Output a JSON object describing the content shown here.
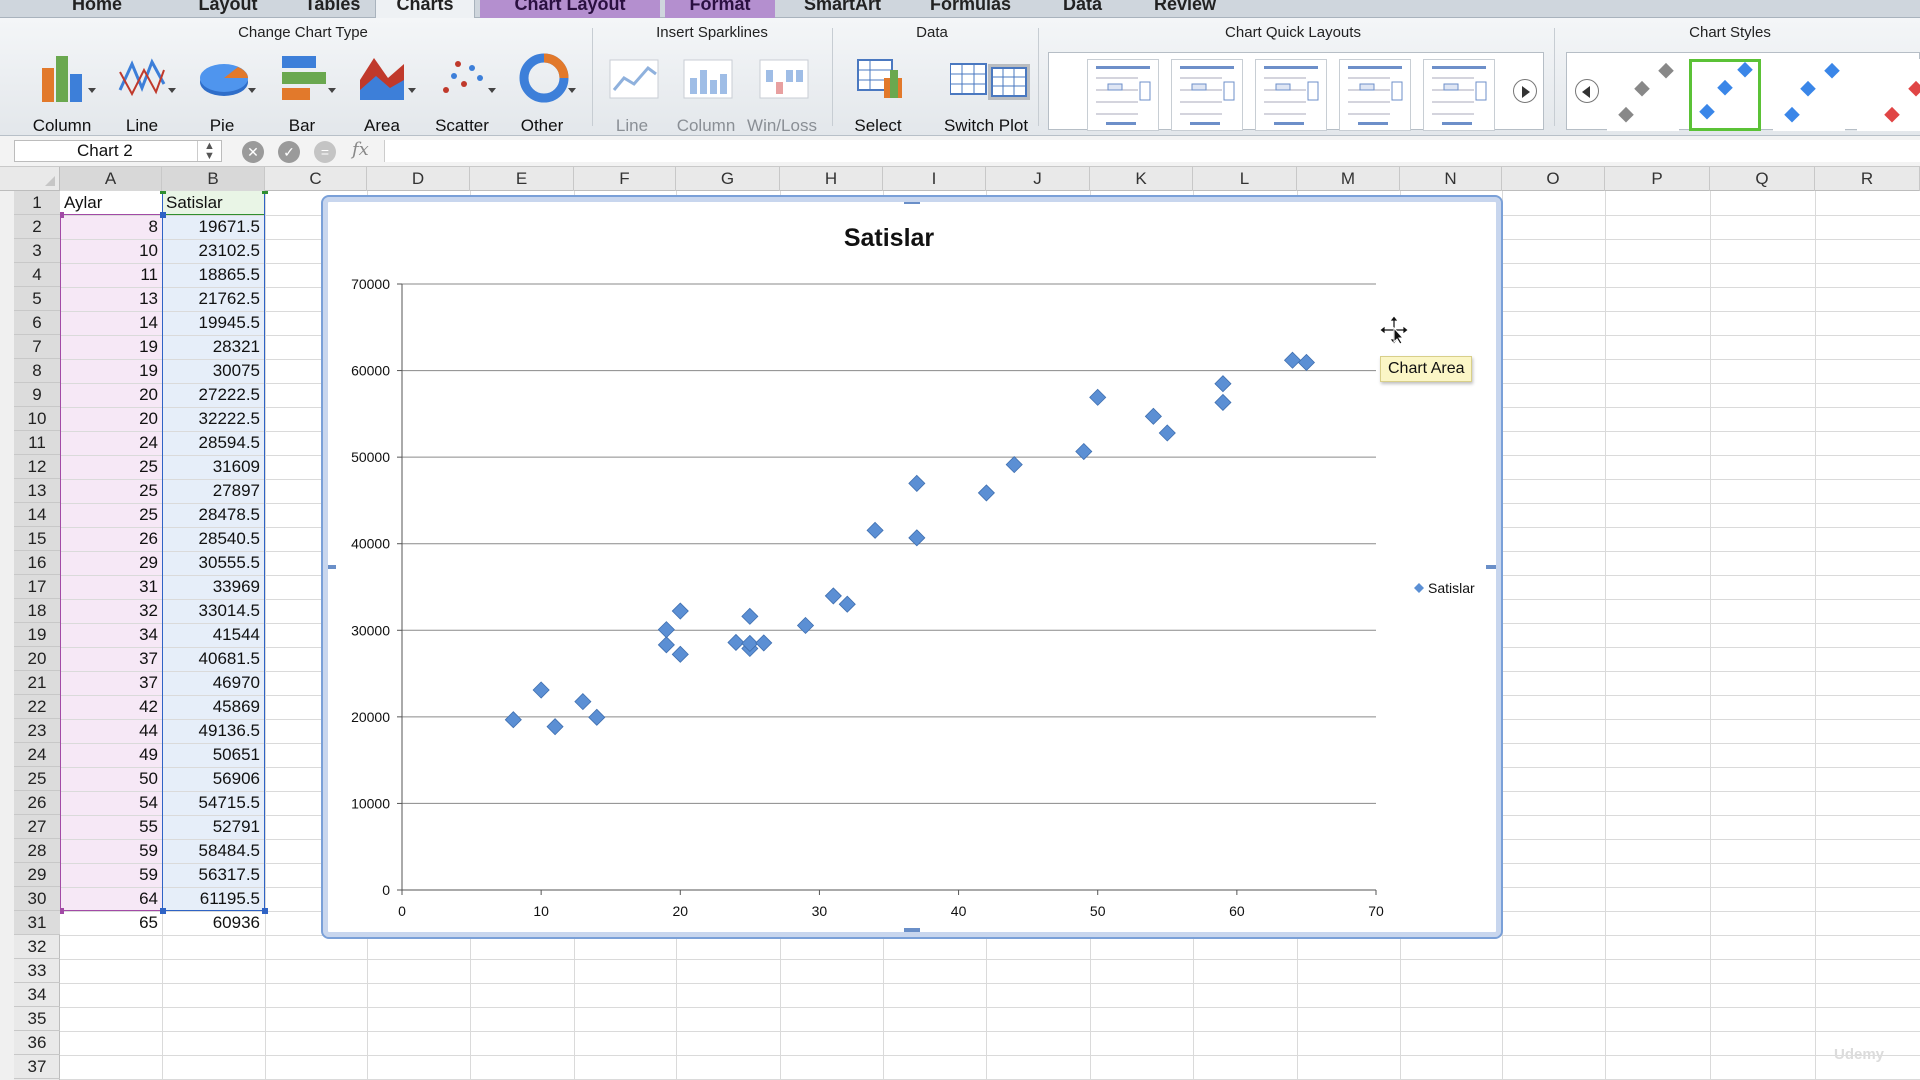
{
  "ribbon_tabs": [
    "Home",
    "Layout",
    "Tables",
    "Charts",
    "Chart Layout",
    "Format",
    "SmartArt",
    "Formulas",
    "Data",
    "Review"
  ],
  "ribbon": {
    "groups": {
      "change_chart_type": "Change Chart Type",
      "insert_sparklines": "Insert Sparklines",
      "data": "Data",
      "chart_quick_layouts": "Chart Quick Layouts",
      "chart_styles": "Chart Styles"
    },
    "chart_type_buttons": [
      "Column",
      "Line",
      "Pie",
      "Bar",
      "Area",
      "Scatter",
      "Other"
    ],
    "sparkline_buttons": [
      "Line",
      "Column",
      "Win/Loss"
    ],
    "data_buttons": [
      "Select",
      "Switch Plot"
    ]
  },
  "formula_bar": {
    "name_box": "Chart 2",
    "fx_label": "fx",
    "value": ""
  },
  "columns": [
    "A",
    "B",
    "C",
    "D",
    "E",
    "F",
    "G",
    "H",
    "I",
    "J",
    "K",
    "L",
    "M",
    "N",
    "O",
    "P",
    "Q",
    "R"
  ],
  "rows": [
    "1",
    "2",
    "3",
    "4",
    "5",
    "6",
    "7",
    "8",
    "9",
    "10",
    "11",
    "12",
    "13",
    "14",
    "15",
    "16",
    "17",
    "18",
    "19",
    "20",
    "21",
    "22",
    "23",
    "24",
    "25",
    "26",
    "27",
    "28",
    "29",
    "30",
    "31",
    "32",
    "33",
    "34",
    "35",
    "36",
    "37"
  ],
  "sheet": {
    "headers": [
      "Aylar",
      "Satislar"
    ],
    "a_values": [
      "8",
      "10",
      "11",
      "13",
      "14",
      "19",
      "19",
      "20",
      "20",
      "24",
      "25",
      "25",
      "25",
      "26",
      "29",
      "31",
      "32",
      "34",
      "37",
      "37",
      "42",
      "44",
      "49",
      "50",
      "54",
      "55",
      "59",
      "59",
      "64",
      "65"
    ],
    "b_values": [
      "19671.5",
      "23102.5",
      "18865.5",
      "21762.5",
      "19945.5",
      "28321",
      "30075",
      "27222.5",
      "32222.5",
      "28594.5",
      "31609",
      "27897",
      "28478.5",
      "28540.5",
      "30555.5",
      "33969",
      "33014.5",
      "41544",
      "40681.5",
      "46970",
      "45869",
      "49136.5",
      "50651",
      "56906",
      "54715.5",
      "52791",
      "58484.5",
      "56317.5",
      "61195.5",
      "60936"
    ]
  },
  "chart_data": {
    "type": "scatter",
    "title": "Satislar",
    "xlabel": "",
    "ylabel": "",
    "xlim": [
      0,
      70
    ],
    "ylim": [
      0,
      70000
    ],
    "x_ticks": [
      0,
      10,
      20,
      30,
      40,
      50,
      60,
      70
    ],
    "y_ticks": [
      0,
      10000,
      20000,
      30000,
      40000,
      50000,
      60000,
      70000
    ],
    "grid": "horizontal major",
    "legend": "right",
    "series": [
      {
        "name": "Satislar",
        "color": "#5b8fd4",
        "x": [
          8,
          10,
          11,
          13,
          14,
          19,
          19,
          20,
          20,
          24,
          25,
          25,
          25,
          26,
          29,
          31,
          32,
          34,
          37,
          37,
          42,
          44,
          49,
          50,
          54,
          55,
          59,
          59,
          64,
          65
        ],
        "y": [
          19671.5,
          23102.5,
          18865.5,
          21762.5,
          19945.5,
          28321,
          30075,
          27222.5,
          32222.5,
          28594.5,
          31609,
          27897,
          28478.5,
          28540.5,
          30555.5,
          33969,
          33014.5,
          41544,
          40681.5,
          46970,
          45869,
          49136.5,
          50651,
          56906,
          54715.5,
          52791,
          58484.5,
          56317.5,
          61195.5,
          60936
        ]
      }
    ]
  },
  "tooltip": "Chart Area",
  "watermark": "Udemy",
  "colors": {
    "accent": "#5bc236",
    "series": "#5b8fd4",
    "selection_a": "#a24aa6",
    "selection_b": "#2f63c5"
  }
}
